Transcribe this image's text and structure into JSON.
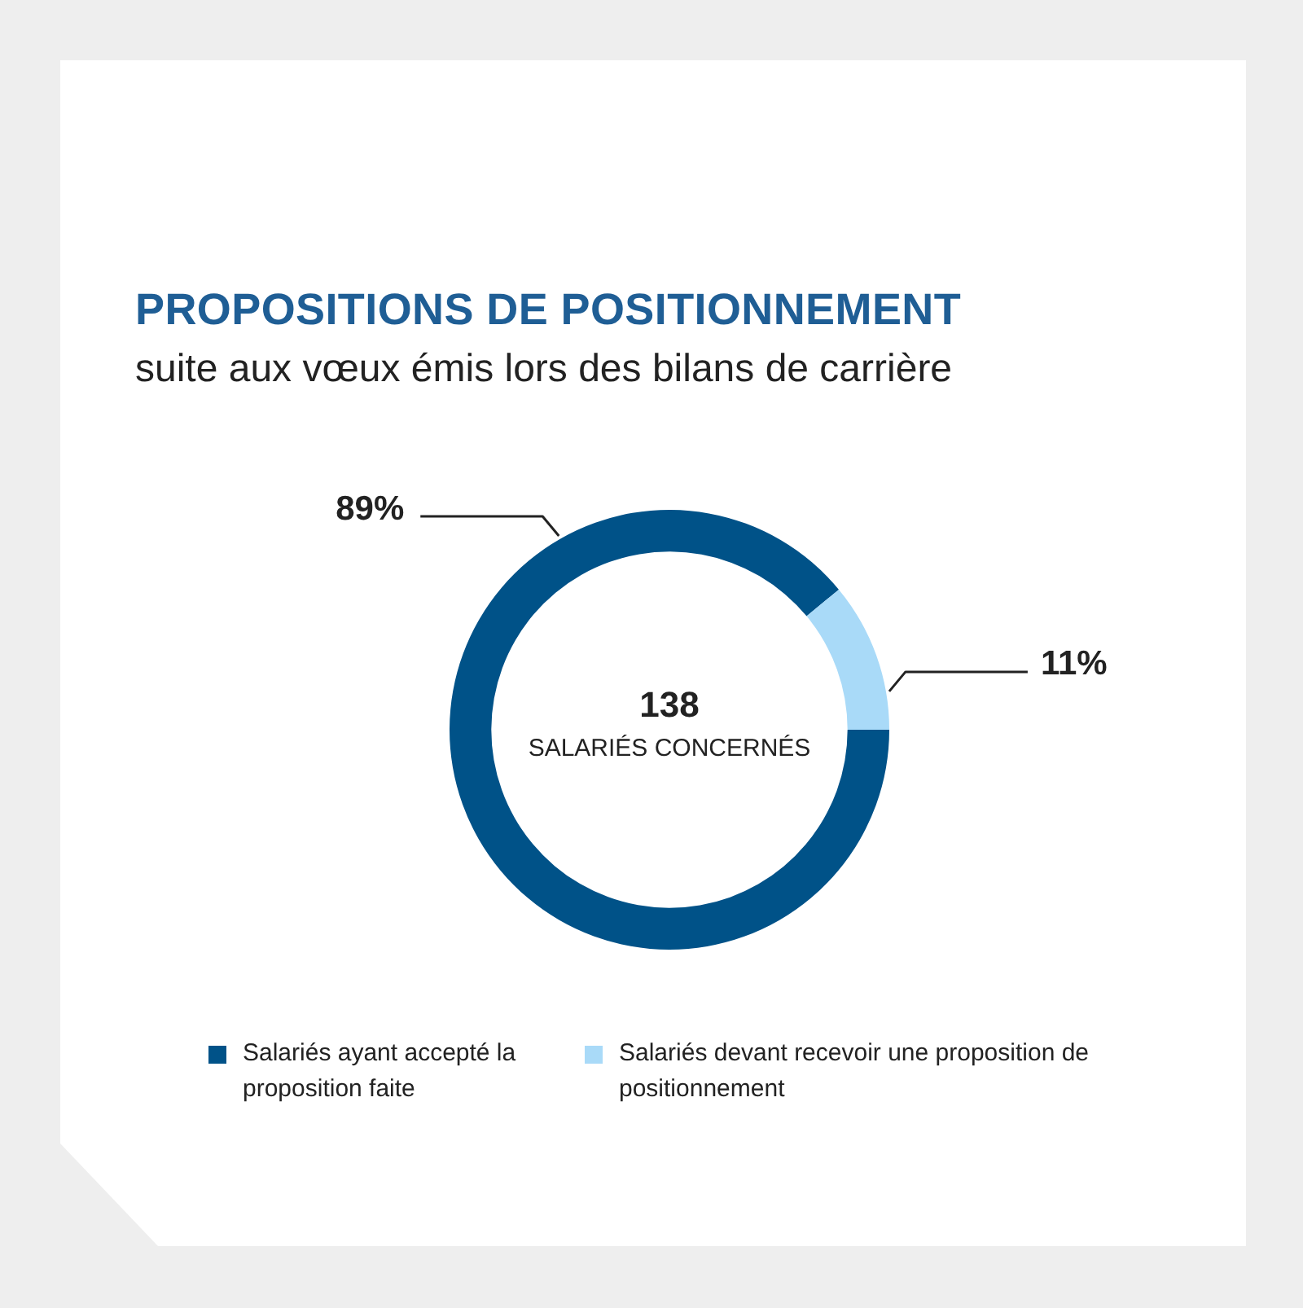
{
  "chart_data": {
    "type": "donut",
    "title": "PROPOSITIONS DE POSITIONNEMENT",
    "subtitle": "suite aux vœux émis lors des bilans de carrière",
    "categories": [
      "Salariés ayant accepté la proposition faite",
      "Salariés devant recevoir une proposition de positionnement"
    ],
    "values": [
      89,
      11
    ],
    "colors": [
      "#005288",
      "#a9daf8"
    ],
    "value_labels": [
      "89%",
      "11%"
    ],
    "annotations": [
      "138",
      "SALARIÉS CONCERNÉS"
    ],
    "legend": "bottom"
  }
}
